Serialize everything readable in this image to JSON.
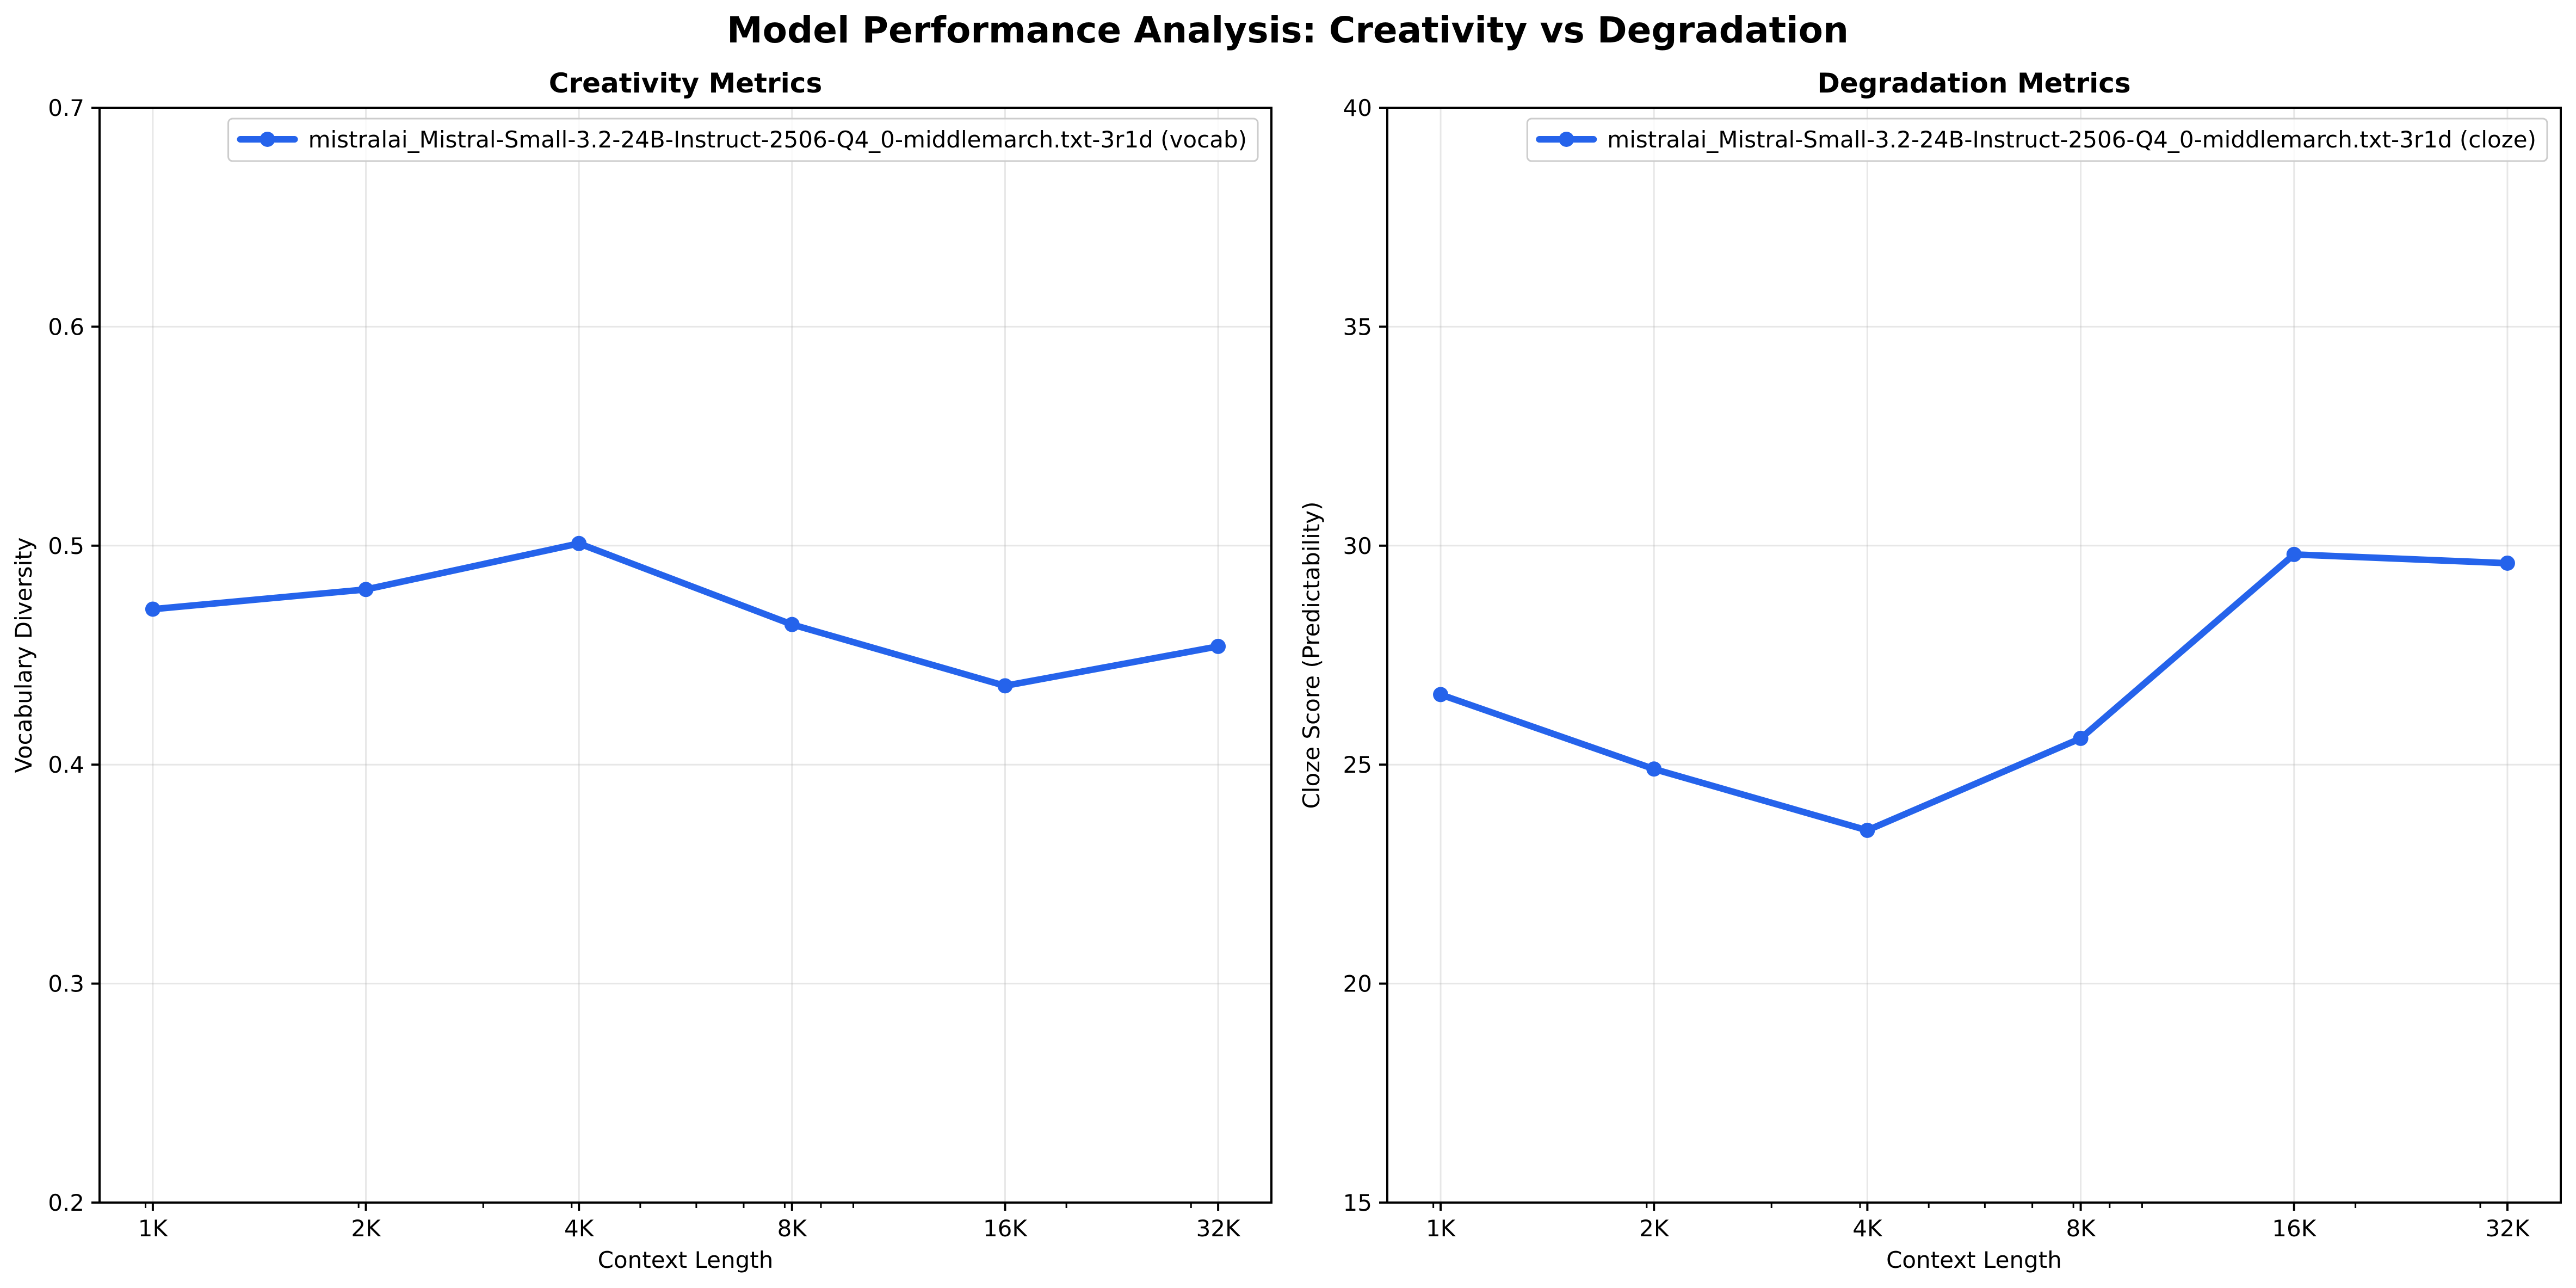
{
  "title": "Model Performance Analysis: Creativity vs Degradation",
  "colors": {
    "series": "#2563eb"
  },
  "chart_data": [
    {
      "type": "line",
      "title": "Creativity Metrics",
      "xlabel": "Context Length",
      "ylabel": "Vocabulary Diversity",
      "x_scale": "log2",
      "x": [
        1024,
        2048,
        4096,
        8192,
        16384,
        32768
      ],
      "x_ticklabels": [
        "1K",
        "2K",
        "4K",
        "8K",
        "16K",
        "32K"
      ],
      "ylim": [
        0.2,
        0.7
      ],
      "y_ticks": [
        0.2,
        0.3,
        0.4,
        0.5,
        0.6,
        0.7
      ],
      "y_ticklabels": [
        "0.2",
        "0.3",
        "0.4",
        "0.5",
        "0.6",
        "0.7"
      ],
      "grid": true,
      "legend_position": "upper right",
      "series": [
        {
          "name": "mistralai_Mistral-Small-3.2-24B-Instruct-2506-Q4_0-middlemarch.txt-3r1d (vocab)",
          "values": [
            0.471,
            0.48,
            0.501,
            0.464,
            0.436,
            0.454
          ]
        }
      ]
    },
    {
      "type": "line",
      "title": "Degradation Metrics",
      "xlabel": "Context Length",
      "ylabel": "Cloze Score (Predictability)",
      "x_scale": "log2",
      "x": [
        1024,
        2048,
        4096,
        8192,
        16384,
        32768
      ],
      "x_ticklabels": [
        "1K",
        "2K",
        "4K",
        "8K",
        "16K",
        "32K"
      ],
      "ylim": [
        15,
        40
      ],
      "y_ticks": [
        15,
        20,
        25,
        30,
        35,
        40
      ],
      "y_ticklabels": [
        "15",
        "20",
        "25",
        "30",
        "35",
        "40"
      ],
      "grid": true,
      "legend_position": "upper right",
      "series": [
        {
          "name": "mistralai_Mistral-Small-3.2-24B-Instruct-2506-Q4_0-middlemarch.txt-3r1d (cloze)",
          "values": [
            26.6,
            24.9,
            23.5,
            25.6,
            29.8,
            29.6
          ]
        }
      ]
    }
  ]
}
